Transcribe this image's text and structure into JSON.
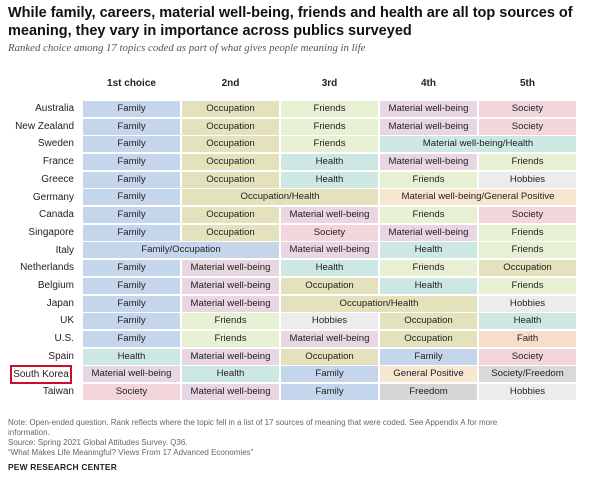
{
  "title": "While family, careers, material well-being, friends and health are all top sources of meaning, they vary in importance across publics surveyed",
  "subtitle": "Ranked choice among 17 topics coded as part of what gives people meaning in life",
  "columns": [
    "1st choice",
    "2nd",
    "3rd",
    "4th",
    "5th"
  ],
  "colors": {
    "Family": "#c5d6ec",
    "Occupation": "#e3e2bd",
    "Friends": "#e8f0d3",
    "Material well-being": "#e8d6e2",
    "Health": "#cde7e3",
    "Society": "#f3d6dc",
    "Hobbies": "#ececec",
    "General Positive": "#f7e6d0",
    "Faith": "#f8ddc8",
    "Freedom": "#d6d6d6",
    "Society/Freedom": "#d9d9d9",
    "Family/Occupation": "#c5d6ec",
    "Occupation/Health": "#e3e2bd",
    "Material well-being/Health": "#cde7e3",
    "Material well-being/General Positive": "#f7e6d0"
  },
  "highlight_row": "South Korea",
  "chart_data": {
    "type": "table",
    "title": "While family, careers, material well-being, friends and health are all top sources of meaning, they vary in importance across publics surveyed",
    "columns": [
      "1st choice",
      "2nd",
      "3rd",
      "4th",
      "5th"
    ],
    "rows": [
      {
        "country": "Australia",
        "cells": [
          {
            "label": "Family",
            "span": 1
          },
          {
            "label": "Occupation",
            "span": 1
          },
          {
            "label": "Friends",
            "span": 1
          },
          {
            "label": "Material well-being",
            "span": 1
          },
          {
            "label": "Society",
            "span": 1
          }
        ]
      },
      {
        "country": "New Zealand",
        "cells": [
          {
            "label": "Family",
            "span": 1
          },
          {
            "label": "Occupation",
            "span": 1
          },
          {
            "label": "Friends",
            "span": 1
          },
          {
            "label": "Material well-being",
            "span": 1
          },
          {
            "label": "Society",
            "span": 1
          }
        ]
      },
      {
        "country": "Sweden",
        "cells": [
          {
            "label": "Family",
            "span": 1
          },
          {
            "label": "Occupation",
            "span": 1
          },
          {
            "label": "Friends",
            "span": 1
          },
          {
            "label": "Material well-being/Health",
            "span": 2
          }
        ]
      },
      {
        "country": "France",
        "cells": [
          {
            "label": "Family",
            "span": 1
          },
          {
            "label": "Occupation",
            "span": 1
          },
          {
            "label": "Health",
            "span": 1
          },
          {
            "label": "Material well-being",
            "span": 1
          },
          {
            "label": "Friends",
            "span": 1
          }
        ]
      },
      {
        "country": "Greece",
        "cells": [
          {
            "label": "Family",
            "span": 1
          },
          {
            "label": "Occupation",
            "span": 1
          },
          {
            "label": "Health",
            "span": 1
          },
          {
            "label": "Friends",
            "span": 1
          },
          {
            "label": "Hobbies",
            "span": 1
          }
        ]
      },
      {
        "country": "Germany",
        "cells": [
          {
            "label": "Family",
            "span": 1
          },
          {
            "label": "Occupation/Health",
            "span": 2
          },
          {
            "label": "Material well-being/General Positive",
            "span": 2
          }
        ]
      },
      {
        "country": "Canada",
        "cells": [
          {
            "label": "Family",
            "span": 1
          },
          {
            "label": "Occupation",
            "span": 1
          },
          {
            "label": "Material well-being",
            "span": 1
          },
          {
            "label": "Friends",
            "span": 1
          },
          {
            "label": "Society",
            "span": 1
          }
        ]
      },
      {
        "country": "Singapore",
        "cells": [
          {
            "label": "Family",
            "span": 1
          },
          {
            "label": "Occupation",
            "span": 1
          },
          {
            "label": "Society",
            "span": 1
          },
          {
            "label": "Material well-being",
            "span": 1
          },
          {
            "label": "Friends",
            "span": 1
          }
        ]
      },
      {
        "country": "Italy",
        "cells": [
          {
            "label": "Family/Occupation",
            "span": 2
          },
          {
            "label": "Material well-being",
            "span": 1
          },
          {
            "label": "Health",
            "span": 1
          },
          {
            "label": "Friends",
            "span": 1
          }
        ]
      },
      {
        "country": "Netherlands",
        "cells": [
          {
            "label": "Family",
            "span": 1
          },
          {
            "label": "Material well-being",
            "span": 1
          },
          {
            "label": "Health",
            "span": 1
          },
          {
            "label": "Friends",
            "span": 1
          },
          {
            "label": "Occupation",
            "span": 1
          }
        ]
      },
      {
        "country": "Belgium",
        "cells": [
          {
            "label": "Family",
            "span": 1
          },
          {
            "label": "Material well-being",
            "span": 1
          },
          {
            "label": "Occupation",
            "span": 1
          },
          {
            "label": "Health",
            "span": 1
          },
          {
            "label": "Friends",
            "span": 1
          }
        ]
      },
      {
        "country": "Japan",
        "cells": [
          {
            "label": "Family",
            "span": 1
          },
          {
            "label": "Material well-being",
            "span": 1
          },
          {
            "label": "Occupation/Health",
            "span": 2
          },
          {
            "label": "Hobbies",
            "span": 1
          }
        ]
      },
      {
        "country": "UK",
        "cells": [
          {
            "label": "Family",
            "span": 1
          },
          {
            "label": "Friends",
            "span": 1
          },
          {
            "label": "Hobbies",
            "span": 1
          },
          {
            "label": "Occupation",
            "span": 1
          },
          {
            "label": "Health",
            "span": 1
          }
        ]
      },
      {
        "country": "U.S.",
        "cells": [
          {
            "label": "Family",
            "span": 1
          },
          {
            "label": "Friends",
            "span": 1
          },
          {
            "label": "Material well-being",
            "span": 1
          },
          {
            "label": "Occupation",
            "span": 1
          },
          {
            "label": "Faith",
            "span": 1
          }
        ]
      },
      {
        "country": "Spain",
        "cells": [
          {
            "label": "Health",
            "span": 1
          },
          {
            "label": "Material well-being",
            "span": 1
          },
          {
            "label": "Occupation",
            "span": 1
          },
          {
            "label": "Family",
            "span": 1
          },
          {
            "label": "Society",
            "span": 1
          }
        ]
      },
      {
        "country": "South Korea",
        "cells": [
          {
            "label": "Material well-being",
            "span": 1
          },
          {
            "label": "Health",
            "span": 1
          },
          {
            "label": "Family",
            "span": 1
          },
          {
            "label": "General Positive",
            "span": 1
          },
          {
            "label": "Society/Freedom",
            "span": 1
          }
        ]
      },
      {
        "country": "Taiwan",
        "cells": [
          {
            "label": "Society",
            "span": 1
          },
          {
            "label": "Material well-being",
            "span": 1
          },
          {
            "label": "Family",
            "span": 1
          },
          {
            "label": "Freedom",
            "span": 1
          },
          {
            "label": "Hobbies",
            "span": 1
          }
        ]
      }
    ]
  },
  "notes": {
    "note_line1": "Note: Open-ended question. Rank reflects where the topic fell in a list of 17 sources of meaning that were coded. See Appendix A for more",
    "note_line2": "information.",
    "source": "Source: Spring 2021 Global Attitudes Survey. Q36.",
    "report": "“What Makes Life Meaningful? Views From 17 Advanced Economies”"
  },
  "brand": "PEW RESEARCH CENTER"
}
